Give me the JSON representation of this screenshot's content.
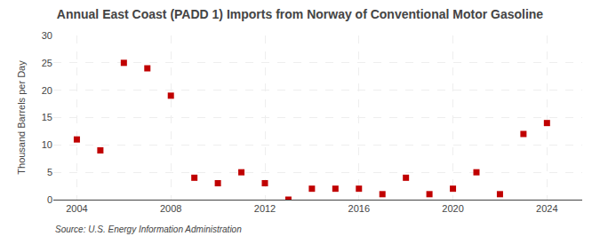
{
  "chart_data": {
    "type": "scatter",
    "title": "Annual East Coast (PADD 1) Imports from Norway of Conventional Motor Gasoline",
    "y_label": "Thousand Barrels per Day",
    "annotations": [
      "Source: U.S. Energy Information Administration"
    ],
    "x": [
      2004,
      2005,
      2006,
      2007,
      2008,
      2009,
      2010,
      2011,
      2012,
      2013,
      2014,
      2015,
      2016,
      2017,
      2018,
      2019,
      2020,
      2021,
      2022,
      2023,
      2024
    ],
    "values": [
      11,
      9,
      25,
      24,
      19,
      4,
      3,
      5,
      3,
      0,
      2,
      2,
      2,
      1,
      4,
      1,
      2,
      5,
      1,
      12,
      14
    ],
    "color": "#c00000",
    "marker": "square",
    "xlim": [
      2003.0,
      2025.5
    ],
    "xticks": [
      2004,
      2008,
      2012,
      2016,
      2020,
      2024
    ],
    "ylim": [
      0,
      30
    ],
    "yticks": [
      0,
      5,
      10,
      15,
      20,
      25,
      30
    ],
    "grid": true
  }
}
